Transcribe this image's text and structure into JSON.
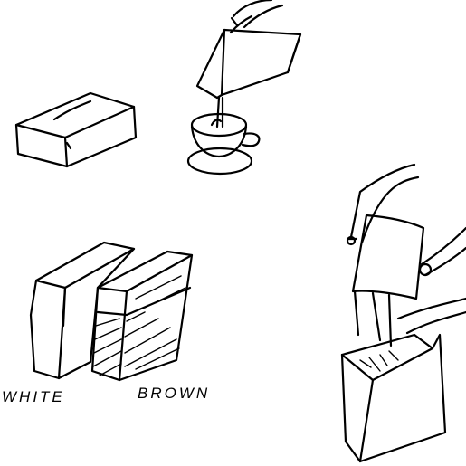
{
  "labels": {
    "white": "WHITE",
    "brown": "BROWN"
  },
  "ink_color": "#000000",
  "background_color": "#ffffff"
}
